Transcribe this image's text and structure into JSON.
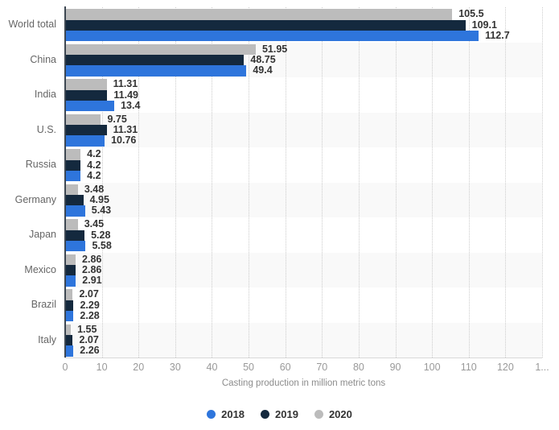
{
  "chart_data": {
    "type": "bar",
    "orientation": "horizontal",
    "title": "",
    "categories": [
      "World total",
      "China",
      "India",
      "U.S.",
      "Russia",
      "Germany",
      "Japan",
      "Mexico",
      "Brazil",
      "Italy"
    ],
    "series": [
      {
        "name": "2018",
        "color": "#2e75dc",
        "values": [
          112.7,
          49.4,
          13.4,
          10.76,
          4.2,
          5.43,
          5.58,
          2.91,
          2.28,
          2.26
        ]
      },
      {
        "name": "2019",
        "color": "#14293e",
        "values": [
          109.1,
          48.75,
          11.49,
          11.31,
          4.2,
          4.95,
          5.28,
          2.86,
          2.29,
          2.07
        ]
      },
      {
        "name": "2020",
        "color": "#bcbcbc",
        "values": [
          105.5,
          51.95,
          11.31,
          9.75,
          4.2,
          3.48,
          3.45,
          2.86,
          2.07,
          1.55
        ]
      }
    ],
    "bar_order_top_to_bottom": [
      "2020",
      "2019",
      "2018"
    ],
    "xlabel": "Casting production in million metric tons",
    "ylabel": "",
    "xlim": [
      0,
      130
    ],
    "tick_values": [
      0,
      10,
      20,
      30,
      40,
      50,
      60,
      70,
      80,
      90,
      100,
      110,
      120,
      130
    ],
    "tick_labels": [
      "0",
      "10",
      "20",
      "30",
      "40",
      "50",
      "60",
      "70",
      "80",
      "90",
      "100",
      "110",
      "120",
      "1..."
    ],
    "grid": "vertical-dotted",
    "row_banding": true,
    "legend_position": "bottom-center"
  },
  "legend": {
    "items": [
      {
        "label": "2018",
        "color": "#2e75dc"
      },
      {
        "label": "2019",
        "color": "#14293e"
      },
      {
        "label": "2020",
        "color": "#bcbcbc"
      }
    ]
  },
  "colors": {
    "background": "#ffffff",
    "band": "#f9f9f9",
    "gridline": "#cccccc",
    "axis_line": "#3d4752",
    "baseline": "#d9d9d9",
    "category_label": "#666666",
    "value_label": "#333333",
    "tick_label": "#999999",
    "axis_title": "#8c8c8c",
    "legend_label": "#333333"
  }
}
